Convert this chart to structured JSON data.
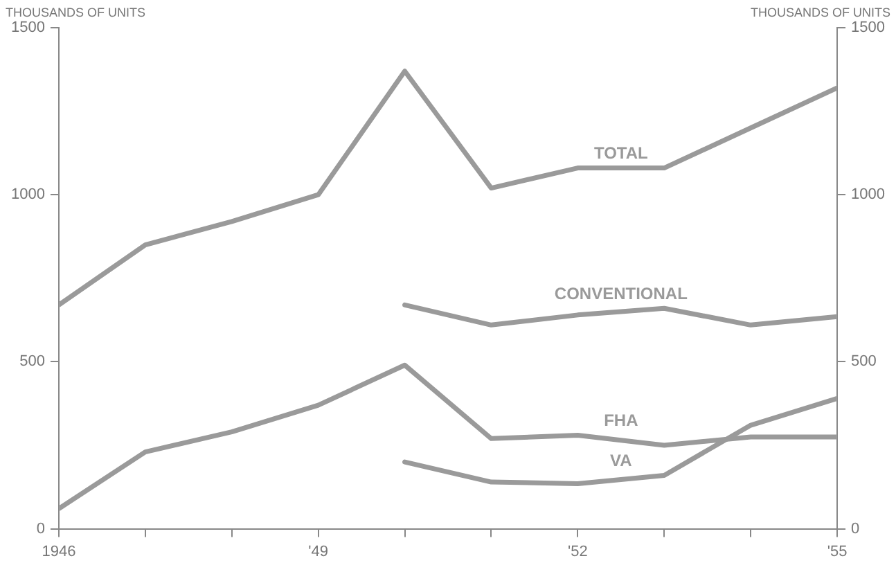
{
  "chart_data": {
    "type": "line",
    "ylabel": "THOUSANDS OF UNITS",
    "y2label": "THOUSANDS OF UNITS",
    "x": [
      1946,
      1947,
      1948,
      1949,
      1950,
      1951,
      1952,
      1953,
      1954,
      1955
    ],
    "xlim": [
      1946,
      1955
    ],
    "xticks": [
      {
        "value": 1946,
        "label": "1946"
      },
      {
        "value": 1947,
        "label": null
      },
      {
        "value": 1948,
        "label": null
      },
      {
        "value": 1949,
        "label": "'49"
      },
      {
        "value": 1950,
        "label": null
      },
      {
        "value": 1951,
        "label": null
      },
      {
        "value": 1952,
        "label": "'52"
      },
      {
        "value": 1953,
        "label": null
      },
      {
        "value": 1954,
        "label": null
      },
      {
        "value": 1955,
        "label": "'55"
      }
    ],
    "ylim": [
      0,
      1500
    ],
    "yticks": [
      0,
      500,
      1000,
      1500
    ],
    "y2lim": [
      0,
      1500
    ],
    "y2ticks": [
      0,
      500,
      1000,
      1500
    ],
    "series": [
      {
        "name": "TOTAL",
        "color": "#9a9a9a",
        "values": [
          670,
          850,
          920,
          1000,
          1370,
          1020,
          1080,
          1080,
          1200,
          1320
        ]
      },
      {
        "name": "CONVENTIONAL",
        "color": "#9a9a9a",
        "values": [
          null,
          null,
          null,
          null,
          670,
          610,
          640,
          660,
          610,
          635
        ]
      },
      {
        "name": "FHA",
        "color": "#9a9a9a",
        "values": [
          60,
          230,
          290,
          370,
          490,
          270,
          280,
          250,
          275,
          275
        ]
      },
      {
        "name": "VA",
        "color": "#9a9a9a",
        "values": [
          null,
          null,
          null,
          null,
          200,
          140,
          135,
          160,
          310,
          390
        ]
      }
    ],
    "grid": false,
    "legend": false,
    "marker": "none",
    "line_style": "solid"
  }
}
